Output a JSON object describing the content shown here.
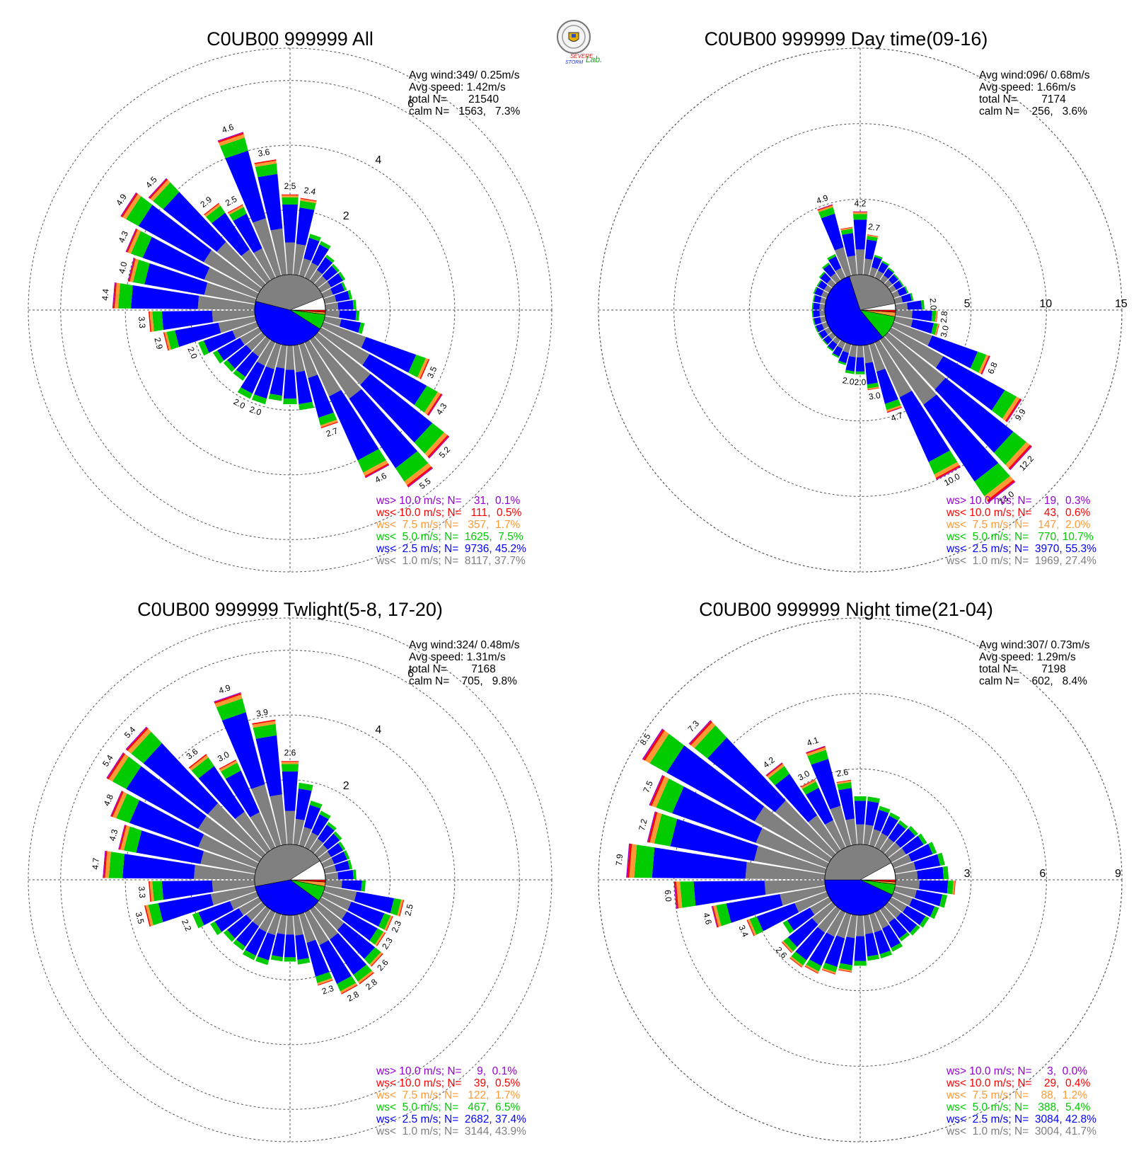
{
  "logo": {
    "name": "Severe Storm Lab.",
    "line1": "SEVERE",
    "line2": "STORM",
    "suffix": "Lab."
  },
  "colors": {
    "purple": "#9400d3",
    "red": "#ff0000",
    "orange": "#ff9933",
    "green": "#00cc00",
    "blue": "#0000ff",
    "gray": "#808080",
    "calm_white": "#ffffff"
  },
  "chart_data": [
    {
      "type": "wind-rose",
      "title": "C0UB00 999999 All",
      "stats": {
        "avg_wind": "Avg wind:349/ 0.25m/s",
        "avg_speed": "Avg speed: 1.42m/s",
        "total": "total N=       21540",
        "calm": "calm N=   1563,   7.3%"
      },
      "rmax": 7,
      "rings": [
        2,
        4,
        6
      ],
      "ring_labels": [
        "2",
        "4",
        "6"
      ],
      "bar_labels": [
        "2.4",
        "3.6",
        "4.6",
        "2.5",
        "2.9",
        "4.5",
        "4.9",
        "4.3",
        "4.0",
        "4.4",
        "3.3",
        "2.9",
        "2.0",
        "2.7",
        "4.6",
        "5.5",
        "5.2",
        "4.3",
        "3.5"
      ],
      "legend": [
        {
          "text": "ws> 10.0 m/s; N=    31,  0.1%",
          "color": "#9400d3"
        },
        {
          "text": "ws< 10.0 m/s; N=   111,  0.5%",
          "color": "#ff0000"
        },
        {
          "text": "ws<  7.5 m/s; N=   357,  1.7%",
          "color": "#ff9933"
        },
        {
          "text": "ws<  5.0 m/s; N=  1625,  7.5%",
          "color": "#00cc00"
        },
        {
          "text": "ws<  2.5 m/s; N=  9736, 45.2%",
          "color": "#0000ff"
        },
        {
          "text": "ws<  1.0 m/s; N=  8117, 37.7%",
          "color": "#808080"
        }
      ],
      "sector_totals": [
        2.5,
        2.4,
        1.4,
        1.3,
        1.0,
        0.9,
        0.9,
        0.8,
        0.9,
        1.0,
        1.1,
        1.3,
        3.5,
        4.3,
        5.2,
        5.5,
        4.6,
        2.7,
        2.1,
        1.9,
        1.8,
        2.0,
        2.0,
        1.6,
        1.6,
        1.7,
        2.0,
        2.9,
        3.3,
        4.4,
        4.0,
        4.3,
        4.9,
        4.5,
        2.9,
        2.5,
        4.6,
        3.6
      ],
      "calm_pie": {
        "gray": 0.4,
        "blue": 0.45,
        "green": 0.07,
        "orange": 0.01,
        "red": 0.01
      }
    },
    {
      "type": "wind-rose",
      "title": "C0UB00 999999 Day time(09-16)",
      "stats": {
        "avg_wind": "Avg wind:096/ 0.68m/s",
        "avg_speed": "Avg speed: 1.66m/s",
        "total": "total N=        7174",
        "calm": "calm N=    256,   3.6%"
      },
      "rmax": 15,
      "rings": [
        5,
        10,
        15
      ],
      "ring_labels": [
        "5",
        "10",
        "15"
      ],
      "bar_labels": [
        "2.7",
        "4.2",
        "4.9",
        "2.8",
        "6.8",
        "9.9",
        "12.2",
        "13.0",
        "10.0",
        "4.7",
        "3.0",
        "2.0",
        "2.0"
      ],
      "legend": [
        {
          "text": "ws> 10.0 m/s; N=    19,  0.3%",
          "color": "#9400d3"
        },
        {
          "text": "ws< 10.0 m/s; N=    43,  0.6%",
          "color": "#ff0000"
        },
        {
          "text": "ws<  7.5 m/s; N=   147,  2.0%",
          "color": "#ff9933"
        },
        {
          "text": "ws<  5.0 m/s; N=   770, 10.7%",
          "color": "#00cc00"
        },
        {
          "text": "ws<  2.5 m/s; N=  3970, 55.3%",
          "color": "#0000ff"
        },
        {
          "text": "ws<  1.0 m/s; N=  1969, 27.4%",
          "color": "#808080"
        }
      ],
      "sector_totals": [
        4.2,
        2.7,
        1.5,
        1.3,
        1.1,
        1.0,
        1.0,
        1.1,
        1.3,
        2.0,
        2.8,
        3.0,
        6.8,
        9.9,
        12.2,
        13.0,
        10.0,
        4.7,
        3.0,
        2.0,
        2.0,
        1.5,
        1.2,
        1.0,
        0.9,
        0.9,
        0.9,
        0.9,
        0.9,
        0.9,
        0.9,
        1.0,
        1.0,
        1.2,
        1.5,
        1.8,
        4.9,
        3.2
      ],
      "calm_pie": {
        "gray": 0.27,
        "blue": 0.56,
        "green": 0.11,
        "orange": 0.02,
        "red": 0.01
      }
    },
    {
      "type": "wind-rose",
      "title": "C0UB00 999999 Twlight(5-8, 17-20)",
      "stats": {
        "avg_wind": "Avg wind:324/ 0.48m/s",
        "avg_speed": "Avg speed: 1.31m/s",
        "total": "total N=        7168",
        "calm": "calm N=    705,   9.8%"
      },
      "rmax": 7,
      "rings": [
        2,
        4,
        6
      ],
      "ring_labels": [
        "2",
        "4",
        "6"
      ],
      "bar_labels": [
        "2.6",
        "3.9",
        "4.9",
        "3.0",
        "3.6",
        "5.4",
        "5.4",
        "4.8",
        "4.3",
        "4.7",
        "3.3",
        "3.5",
        "2.2",
        "2.3",
        "2.8",
        "2.8",
        "2.6",
        "2.3",
        "2.3",
        "2.5"
      ],
      "legend": [
        {
          "text": "ws> 10.0 m/s; N=     9,  0.1%",
          "color": "#9400d3"
        },
        {
          "text": "ws< 10.0 m/s; N=    39,  0.5%",
          "color": "#ff0000"
        },
        {
          "text": "ws<  7.5 m/s; N=   122,  1.7%",
          "color": "#ff9933"
        },
        {
          "text": "ws<  5.0 m/s; N=   467,  6.5%",
          "color": "#00cc00"
        },
        {
          "text": "ws<  2.5 m/s; N=  2682, 37.4%",
          "color": "#0000ff"
        },
        {
          "text": "ws<  1.0 m/s; N=  3144, 43.9%",
          "color": "#808080"
        }
      ],
      "sector_totals": [
        2.6,
        2.0,
        1.5,
        1.3,
        1.1,
        1.0,
        0.9,
        0.9,
        0.9,
        1.0,
        1.3,
        2.5,
        2.3,
        2.3,
        2.6,
        2.8,
        2.8,
        2.3,
        1.6,
        1.5,
        1.5,
        1.7,
        1.7,
        1.6,
        1.6,
        1.8,
        2.2,
        3.5,
        3.3,
        4.7,
        4.3,
        4.8,
        5.4,
        5.4,
        3.6,
        3.0,
        4.9,
        3.9
      ],
      "calm_pie": {
        "gray": 0.44,
        "blue": 0.37,
        "green": 0.07,
        "orange": 0.02,
        "red": 0.01
      }
    },
    {
      "type": "wind-rose",
      "title": "C0UB00 999999 Night time(21-04)",
      "stats": {
        "avg_wind": "Avg wind:307/ 0.73m/s",
        "avg_speed": "Avg speed: 1.29m/s",
        "total": "total N=        7198",
        "calm": "calm N=    602,   8.4%"
      },
      "rmax": 9,
      "rings": [
        3,
        6,
        9
      ],
      "ring_labels": [
        "3",
        "6",
        "9"
      ],
      "bar_labels": [
        "2.6",
        "4.1",
        "3.0",
        "4.2",
        "7.3",
        "8.5",
        "7.5",
        "7.2",
        "7.9",
        "6.0",
        "4.6",
        "3.4"
      ],
      "legend": [
        {
          "text": "ws> 10.0 m/s; N=     3,  0.0%",
          "color": "#9400d3"
        },
        {
          "text": "ws< 10.0 m/s; N=    29,  0.4%",
          "color": "#ff0000"
        },
        {
          "text": "ws<  7.5 m/s; N=    88,  1.2%",
          "color": "#ff9933"
        },
        {
          "text": "ws<  5.0 m/s; N=   388,  5.4%",
          "color": "#00cc00"
        },
        {
          "text": "ws<  2.5 m/s; N=  3084, 42.8%",
          "color": "#0000ff"
        },
        {
          "text": "ws<  1.0 m/s; N=  3004, 41.7%",
          "color": "#808080"
        }
      ],
      "sector_totals": [
        2.0,
        2.0,
        1.7,
        1.6,
        1.5,
        1.6,
        1.7,
        1.9,
        2.1,
        2.2,
        2.4,
        2.2,
        2.0,
        1.8,
        1.7,
        1.6,
        1.8,
        1.9,
        1.9,
        2.1,
        2.3,
        2.5,
        2.7,
        2.8,
        2.6,
        2.2,
        3.4,
        4.6,
        6.0,
        7.9,
        7.2,
        7.5,
        8.5,
        7.3,
        4.2,
        3.0,
        4.1,
        2.6
      ],
      "calm_pie": {
        "gray": 0.42,
        "blue": 0.43,
        "green": 0.05,
        "orange": 0.01,
        "red": 0.01
      }
    }
  ]
}
